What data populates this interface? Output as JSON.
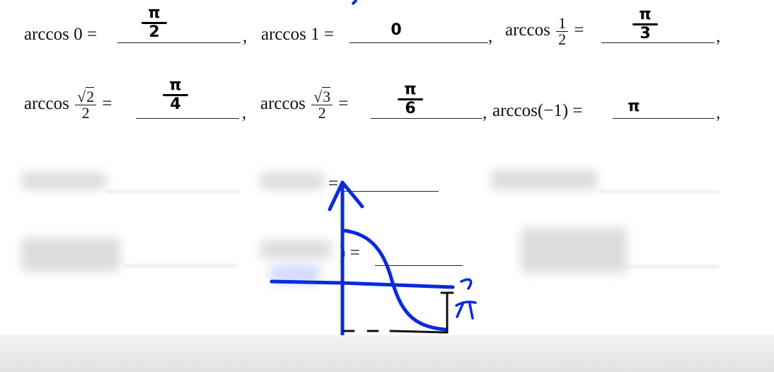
{
  "row1": {
    "expr1": {
      "func": "arccos",
      "arg": "0",
      "eq": "=",
      "answer_num": "π",
      "answer_den": "2"
    },
    "expr2": {
      "func": "arccos",
      "arg": "1",
      "eq": "=",
      "answer": "0"
    },
    "expr3": {
      "func": "arccos",
      "arg_num": "1",
      "arg_den": "2",
      "eq": "=",
      "answer_num": "π",
      "answer_den": "3"
    },
    "comma": ","
  },
  "row2": {
    "expr1": {
      "func": "arccos",
      "arg_num_rad": "2",
      "arg_den": "2",
      "eq": "=",
      "answer_num": "π",
      "answer_den": "4"
    },
    "expr2": {
      "func": "arccos",
      "arg_num_rad": "3",
      "arg_den": "2",
      "eq": "=",
      "answer_num": "π",
      "answer_den": "6"
    },
    "expr3": {
      "func": "arccos",
      "arg": "(−1)",
      "eq": "=",
      "answer": "π"
    },
    "comma": ","
  },
  "hidden": {
    "row3_eq": "=",
    "row4_frag": ") ="
  },
  "sketch": {
    "axis_label": "π",
    "colors": {
      "ink": "#0a2bd8",
      "answer_ink": "#000000"
    }
  }
}
